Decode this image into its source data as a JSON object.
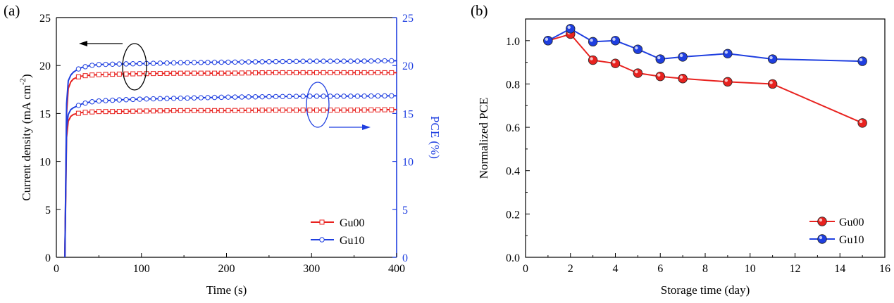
{
  "colors": {
    "red": "#e8221f",
    "blue": "#1f3fe0",
    "axis": "#000000",
    "right_axis": "#1f3fe0"
  },
  "chart_data": [
    {
      "panel": "(a)",
      "type": "line",
      "xlabel": "Time (s)",
      "ylabel_left": "Current density (mA cm",
      "ylabel_left_sup": "-2",
      "ylabel_left_close": ")",
      "ylabel_right": "PCE (%)",
      "xlim": [
        0,
        400
      ],
      "ylim_left": [
        0,
        25
      ],
      "ylim_right": [
        0,
        25
      ],
      "xticks": [
        0,
        100,
        200,
        300,
        400
      ],
      "yticks_left": [
        0,
        5,
        10,
        15,
        20,
        25
      ],
      "yticks_right": [
        0,
        5,
        10,
        15,
        20,
        25
      ],
      "legend_position": "bottom-right",
      "annotations": [
        "arrow-left from upper ellipse: current density axis",
        "arrow-right from lower ellipse: PCE axis"
      ],
      "series": [
        {
          "name": "Gu00",
          "quantity": "current density",
          "axis": "left",
          "marker": "square",
          "color": "red",
          "x": [
            10,
            12,
            14,
            17,
            20,
            25,
            30,
            40,
            50,
            70,
            100,
            150,
            200,
            250,
            300,
            350,
            400
          ],
          "y": [
            0,
            15,
            17.6,
            18.3,
            18.6,
            18.8,
            18.9,
            19.0,
            19.05,
            19.1,
            19.15,
            19.2,
            19.2,
            19.25,
            19.25,
            19.25,
            19.25
          ]
        },
        {
          "name": "Gu10",
          "quantity": "current density",
          "axis": "left",
          "marker": "circle",
          "color": "blue",
          "x": [
            10,
            12,
            14,
            17,
            20,
            25,
            30,
            40,
            50,
            70,
            100,
            150,
            200,
            250,
            300,
            350,
            400
          ],
          "y": [
            0,
            16,
            18.4,
            19.0,
            19.3,
            19.6,
            19.8,
            20.0,
            20.1,
            20.15,
            20.2,
            20.3,
            20.35,
            20.4,
            20.45,
            20.45,
            20.5
          ]
        },
        {
          "name": "Gu00",
          "quantity": "PCE",
          "axis": "right",
          "marker": "square",
          "color": "red",
          "x": [
            10,
            12,
            14,
            17,
            20,
            25,
            30,
            40,
            50,
            70,
            100,
            150,
            200,
            250,
            300,
            350,
            400
          ],
          "y": [
            0,
            12.5,
            14.2,
            14.7,
            14.9,
            15.0,
            15.1,
            15.15,
            15.2,
            15.2,
            15.25,
            15.3,
            15.3,
            15.35,
            15.35,
            15.35,
            15.4
          ]
        },
        {
          "name": "Gu10",
          "quantity": "PCE",
          "axis": "right",
          "marker": "circle",
          "color": "blue",
          "x": [
            10,
            12,
            14,
            17,
            20,
            25,
            30,
            40,
            50,
            70,
            100,
            150,
            200,
            250,
            300,
            350,
            400
          ],
          "y": [
            0,
            13.5,
            14.9,
            15.4,
            15.6,
            15.8,
            16.0,
            16.2,
            16.3,
            16.4,
            16.5,
            16.6,
            16.7,
            16.75,
            16.8,
            16.8,
            16.85
          ]
        }
      ],
      "legend": [
        "Gu00",
        "Gu10"
      ]
    },
    {
      "panel": "(b)",
      "type": "line",
      "xlabel": "Storage time (day)",
      "ylabel": "Normalized PCE",
      "xlim": [
        0,
        16
      ],
      "ylim": [
        0.0,
        1.1
      ],
      "xticks": [
        0,
        2,
        4,
        6,
        8,
        10,
        12,
        14,
        16
      ],
      "yticks": [
        0.0,
        0.2,
        0.4,
        0.6,
        0.8,
        1.0
      ],
      "ytick_labels": [
        "0.0",
        "0.2",
        "0.4",
        "0.6",
        "0.8",
        "1.0"
      ],
      "legend_position": "bottom-right",
      "series": [
        {
          "name": "Gu00",
          "color": "red",
          "x": [
            1,
            2,
            3,
            4,
            5,
            6,
            7,
            9,
            11,
            15
          ],
          "y": [
            1.0,
            1.03,
            0.91,
            0.895,
            0.85,
            0.835,
            0.825,
            0.81,
            0.8,
            0.62
          ]
        },
        {
          "name": "Gu10",
          "color": "blue",
          "x": [
            1,
            2,
            3,
            4,
            5,
            6,
            7,
            9,
            11,
            15
          ],
          "y": [
            1.0,
            1.055,
            0.995,
            1.0,
            0.96,
            0.915,
            0.925,
            0.94,
            0.915,
            0.905
          ]
        }
      ],
      "legend": [
        "Gu00",
        "Gu10"
      ]
    }
  ]
}
